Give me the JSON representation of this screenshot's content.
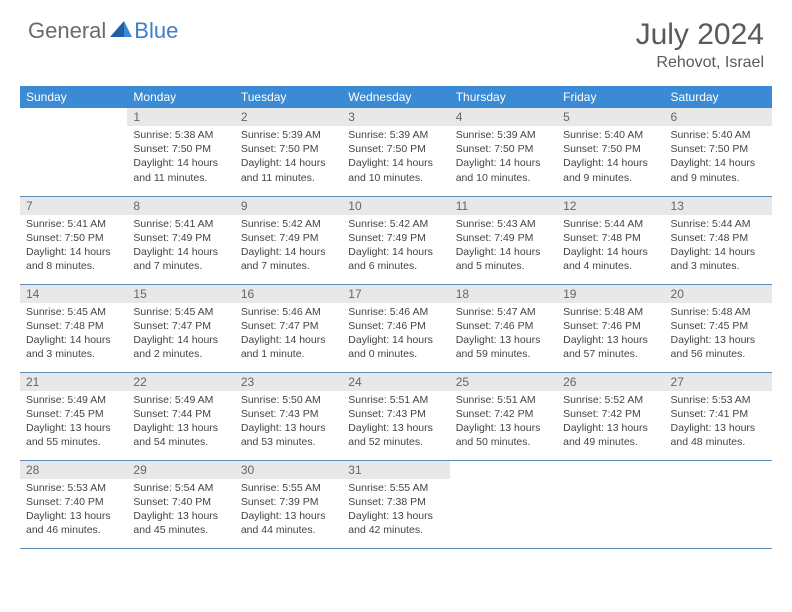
{
  "logo": {
    "part1": "General",
    "part2": "Blue"
  },
  "title": "July 2024",
  "location": "Rehovot, Israel",
  "colors": {
    "header_bg": "#3b8bd4",
    "header_text": "#ffffff",
    "daynum_bg": "#e8e8e8",
    "daynum_text": "#666666",
    "border": "#5a8bb5",
    "body_text": "#444444",
    "title_text": "#5a5a5a",
    "logo_gray": "#6a6a6a",
    "logo_blue": "#3b7fc4"
  },
  "weekdays": [
    "Sunday",
    "Monday",
    "Tuesday",
    "Wednesday",
    "Thursday",
    "Friday",
    "Saturday"
  ],
  "start_offset": 1,
  "days": [
    {
      "n": 1,
      "sr": "5:38 AM",
      "ss": "7:50 PM",
      "dl": "14 hours and 11 minutes."
    },
    {
      "n": 2,
      "sr": "5:39 AM",
      "ss": "7:50 PM",
      "dl": "14 hours and 11 minutes."
    },
    {
      "n": 3,
      "sr": "5:39 AM",
      "ss": "7:50 PM",
      "dl": "14 hours and 10 minutes."
    },
    {
      "n": 4,
      "sr": "5:39 AM",
      "ss": "7:50 PM",
      "dl": "14 hours and 10 minutes."
    },
    {
      "n": 5,
      "sr": "5:40 AM",
      "ss": "7:50 PM",
      "dl": "14 hours and 9 minutes."
    },
    {
      "n": 6,
      "sr": "5:40 AM",
      "ss": "7:50 PM",
      "dl": "14 hours and 9 minutes."
    },
    {
      "n": 7,
      "sr": "5:41 AM",
      "ss": "7:50 PM",
      "dl": "14 hours and 8 minutes."
    },
    {
      "n": 8,
      "sr": "5:41 AM",
      "ss": "7:49 PM",
      "dl": "14 hours and 7 minutes."
    },
    {
      "n": 9,
      "sr": "5:42 AM",
      "ss": "7:49 PM",
      "dl": "14 hours and 7 minutes."
    },
    {
      "n": 10,
      "sr": "5:42 AM",
      "ss": "7:49 PM",
      "dl": "14 hours and 6 minutes."
    },
    {
      "n": 11,
      "sr": "5:43 AM",
      "ss": "7:49 PM",
      "dl": "14 hours and 5 minutes."
    },
    {
      "n": 12,
      "sr": "5:44 AM",
      "ss": "7:48 PM",
      "dl": "14 hours and 4 minutes."
    },
    {
      "n": 13,
      "sr": "5:44 AM",
      "ss": "7:48 PM",
      "dl": "14 hours and 3 minutes."
    },
    {
      "n": 14,
      "sr": "5:45 AM",
      "ss": "7:48 PM",
      "dl": "14 hours and 3 minutes."
    },
    {
      "n": 15,
      "sr": "5:45 AM",
      "ss": "7:47 PM",
      "dl": "14 hours and 2 minutes."
    },
    {
      "n": 16,
      "sr": "5:46 AM",
      "ss": "7:47 PM",
      "dl": "14 hours and 1 minute."
    },
    {
      "n": 17,
      "sr": "5:46 AM",
      "ss": "7:46 PM",
      "dl": "14 hours and 0 minutes."
    },
    {
      "n": 18,
      "sr": "5:47 AM",
      "ss": "7:46 PM",
      "dl": "13 hours and 59 minutes."
    },
    {
      "n": 19,
      "sr": "5:48 AM",
      "ss": "7:46 PM",
      "dl": "13 hours and 57 minutes."
    },
    {
      "n": 20,
      "sr": "5:48 AM",
      "ss": "7:45 PM",
      "dl": "13 hours and 56 minutes."
    },
    {
      "n": 21,
      "sr": "5:49 AM",
      "ss": "7:45 PM",
      "dl": "13 hours and 55 minutes."
    },
    {
      "n": 22,
      "sr": "5:49 AM",
      "ss": "7:44 PM",
      "dl": "13 hours and 54 minutes."
    },
    {
      "n": 23,
      "sr": "5:50 AM",
      "ss": "7:43 PM",
      "dl": "13 hours and 53 minutes."
    },
    {
      "n": 24,
      "sr": "5:51 AM",
      "ss": "7:43 PM",
      "dl": "13 hours and 52 minutes."
    },
    {
      "n": 25,
      "sr": "5:51 AM",
      "ss": "7:42 PM",
      "dl": "13 hours and 50 minutes."
    },
    {
      "n": 26,
      "sr": "5:52 AM",
      "ss": "7:42 PM",
      "dl": "13 hours and 49 minutes."
    },
    {
      "n": 27,
      "sr": "5:53 AM",
      "ss": "7:41 PM",
      "dl": "13 hours and 48 minutes."
    },
    {
      "n": 28,
      "sr": "5:53 AM",
      "ss": "7:40 PM",
      "dl": "13 hours and 46 minutes."
    },
    {
      "n": 29,
      "sr": "5:54 AM",
      "ss": "7:40 PM",
      "dl": "13 hours and 45 minutes."
    },
    {
      "n": 30,
      "sr": "5:55 AM",
      "ss": "7:39 PM",
      "dl": "13 hours and 44 minutes."
    },
    {
      "n": 31,
      "sr": "5:55 AM",
      "ss": "7:38 PM",
      "dl": "13 hours and 42 minutes."
    }
  ],
  "labels": {
    "sunrise": "Sunrise:",
    "sunset": "Sunset:",
    "daylight": "Daylight:"
  }
}
